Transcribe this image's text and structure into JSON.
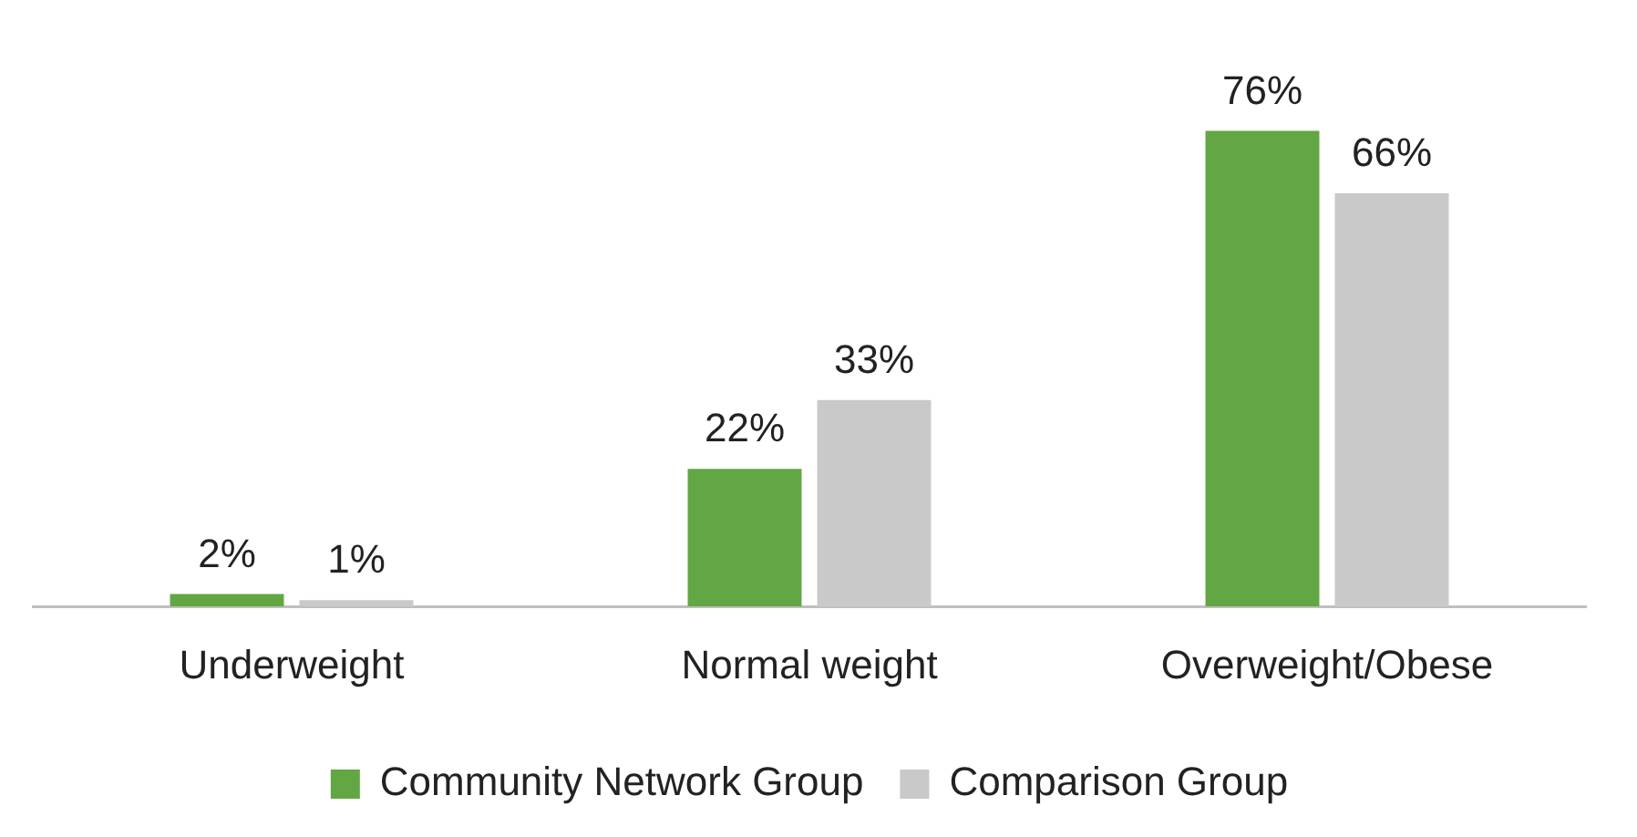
{
  "chart_data": {
    "type": "bar",
    "categories": [
      "Underweight",
      "Normal weight",
      "Overweight/Obese"
    ],
    "series": [
      {
        "name": "Community Network Group",
        "color": "#62a744",
        "values": [
          2,
          22,
          76
        ],
        "value_labels": [
          "2%",
          "22%",
          "76%"
        ]
      },
      {
        "name": "Comparison Group",
        "color": "#c9c9c9",
        "values": [
          1,
          33,
          66
        ],
        "value_labels": [
          "1%",
          "33%",
          "66%"
        ]
      }
    ],
    "grid": false,
    "legend": "bottom"
  }
}
